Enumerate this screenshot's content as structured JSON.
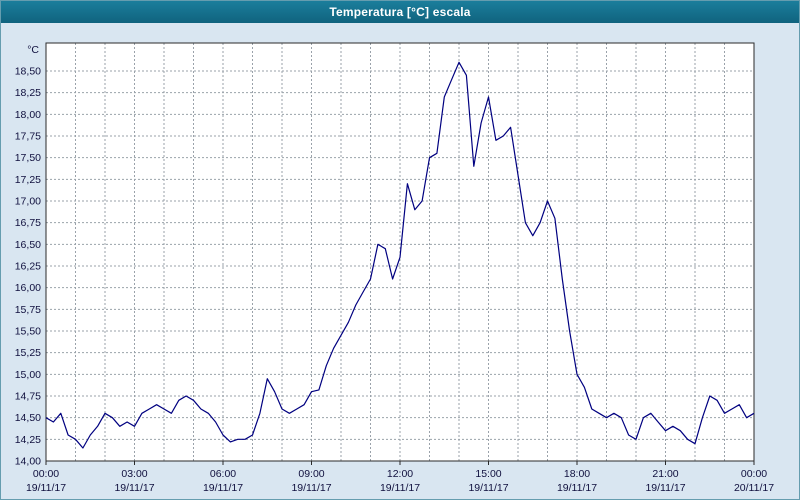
{
  "window": {
    "title": "Temperatura [°C] escala"
  },
  "colors": {
    "titlebar_bg": "#14718e",
    "titlebar_text": "#ffffff",
    "window_bg": "#d9e6f1",
    "plot_bg": "#ffffff",
    "grid": "#9aa2aa",
    "axis": "#2a2a2a",
    "line": "#000080",
    "tick_text": "#10103e"
  },
  "chart_data": {
    "type": "line",
    "title": "Temperatura [°C] escala",
    "ylabel": "°C",
    "xlabel": "",
    "ylim": [
      14.0,
      18.5
    ],
    "ytick_step": 0.25,
    "decimal_separator": ",",
    "grid": true,
    "legend": "none",
    "x_range_hours": [
      0,
      24
    ],
    "x_start_hour": 0,
    "x_step_hours": 0.25,
    "x_minor_grid_hours": 1,
    "series_name": "Temperatura",
    "values": [
      14.5,
      14.45,
      14.55,
      14.3,
      14.25,
      14.15,
      14.3,
      14.4,
      14.55,
      14.5,
      14.4,
      14.45,
      14.4,
      14.55,
      14.6,
      14.65,
      14.6,
      14.55,
      14.7,
      14.75,
      14.7,
      14.6,
      14.55,
      14.45,
      14.3,
      14.22,
      14.25,
      14.25,
      14.3,
      14.55,
      14.95,
      14.8,
      14.6,
      14.55,
      14.6,
      14.65,
      14.8,
      14.82,
      15.1,
      15.3,
      15.45,
      15.6,
      15.8,
      15.95,
      16.1,
      16.5,
      16.45,
      16.1,
      16.35,
      17.2,
      16.9,
      17.0,
      17.5,
      17.55,
      18.2,
      18.4,
      18.6,
      18.45,
      17.4,
      17.9,
      18.2,
      17.7,
      17.75,
      17.85,
      17.3,
      16.75,
      16.6,
      16.75,
      17.0,
      16.8,
      16.1,
      15.5,
      15.0,
      14.85,
      14.6,
      14.55,
      14.5,
      14.55,
      14.5,
      14.3,
      14.25,
      14.5,
      14.55,
      14.45,
      14.35,
      14.4,
      14.35,
      14.25,
      14.2,
      14.5,
      14.75,
      14.7,
      14.55,
      14.6,
      14.65,
      14.5,
      14.55
    ],
    "xticks": [
      {
        "hour": 0,
        "time": "00:00",
        "date": "19/11/17"
      },
      {
        "hour": 3,
        "time": "03:00",
        "date": "19/11/17"
      },
      {
        "hour": 6,
        "time": "06:00",
        "date": "19/11/17"
      },
      {
        "hour": 9,
        "time": "09:00",
        "date": "19/11/17"
      },
      {
        "hour": 12,
        "time": "12:00",
        "date": "19/11/17"
      },
      {
        "hour": 15,
        "time": "15:00",
        "date": "19/11/17"
      },
      {
        "hour": 18,
        "time": "18:00",
        "date": "19/11/17"
      },
      {
        "hour": 21,
        "time": "21:00",
        "date": "19/11/17"
      },
      {
        "hour": 24,
        "time": "00:00",
        "date": "20/11/17"
      }
    ]
  }
}
